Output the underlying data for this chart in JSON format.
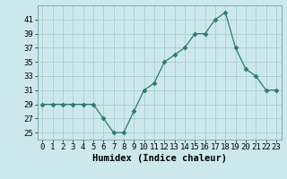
{
  "xlabel": "Humidex (Indice chaleur)",
  "x": [
    0,
    1,
    2,
    3,
    4,
    5,
    6,
    7,
    8,
    9,
    10,
    11,
    12,
    13,
    14,
    15,
    16,
    17,
    18,
    19,
    20,
    21,
    22,
    23
  ],
  "y": [
    29,
    29,
    29,
    29,
    29,
    29,
    27,
    25,
    25,
    28,
    31,
    32,
    35,
    36,
    37,
    39,
    39,
    41,
    42,
    37,
    34,
    33,
    31,
    31
  ],
  "line_color": "#2d7a6e",
  "marker": "D",
  "marker_size": 2.5,
  "bg_color": "#cde8ea",
  "grid_color": "#aacece",
  "xlim": [
    -0.5,
    23.5
  ],
  "ylim": [
    24,
    43
  ],
  "yticks": [
    25,
    27,
    29,
    31,
    33,
    35,
    37,
    39,
    41
  ],
  "xticks": [
    0,
    1,
    2,
    3,
    4,
    5,
    6,
    7,
    8,
    9,
    10,
    11,
    12,
    13,
    14,
    15,
    16,
    17,
    18,
    19,
    20,
    21,
    22,
    23
  ],
  "tick_fontsize": 6.5,
  "xlabel_fontsize": 7.5
}
